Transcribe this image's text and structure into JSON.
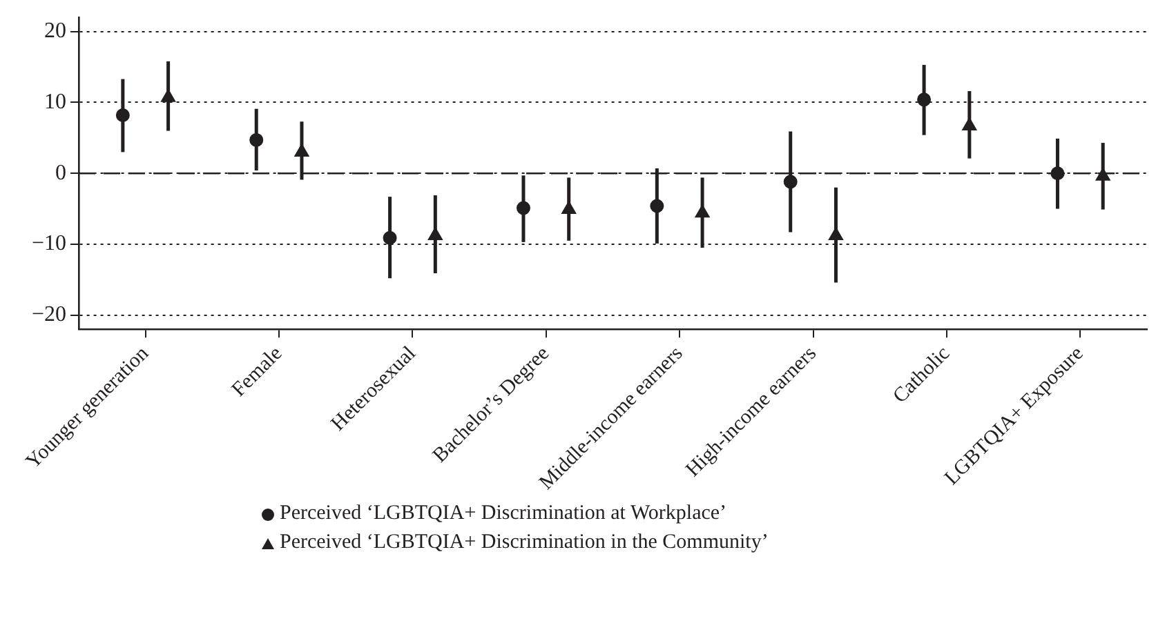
{
  "chart_data": {
    "type": "scatter",
    "categories": [
      "Younger generation",
      "Female",
      "Heterosexual",
      "Bachelor’s Degree",
      "Middle-income earners",
      "High-income earners",
      "Catholic",
      "LGBTQIA+ Exposure"
    ],
    "series": [
      {
        "name": "Perceived ‘LGBTQIA+ Discrimination at Workplace’",
        "color": "#231f20",
        "marker": "circle",
        "values": [
          8.2,
          4.7,
          -9.1,
          -4.9,
          -4.6,
          -1.2,
          10.4,
          0.0
        ],
        "errors": [
          [
            3.0,
            13.3
          ],
          [
            0.4,
            9.1
          ],
          [
            -14.8,
            -3.3
          ],
          [
            -9.7,
            -0.3
          ],
          [
            -9.9,
            0.7
          ],
          [
            -8.3,
            5.9
          ],
          [
            5.4,
            15.3
          ],
          [
            -5.0,
            4.9
          ]
        ]
      },
      {
        "name": "Perceived ‘LGBTQIA+ Discrimination in the Community’",
        "color": "#231f20",
        "marker": "triangle",
        "values": [
          10.7,
          3.0,
          -8.8,
          -5.1,
          -5.6,
          -8.8,
          6.7,
          -0.4
        ],
        "errors": [
          [
            6.0,
            15.8
          ],
          [
            -0.9,
            7.3
          ],
          [
            -14.1,
            -3.1
          ],
          [
            -9.5,
            -0.6
          ],
          [
            -10.5,
            -0.6
          ],
          [
            -15.4,
            -2.0
          ],
          [
            2.1,
            11.6
          ],
          [
            -5.1,
            4.3
          ]
        ]
      }
    ],
    "ylim": [
      -22,
      22
    ],
    "yticks": [
      {
        "value": -20,
        "label": "−20"
      },
      {
        "value": -10,
        "label": "−10"
      },
      0,
      10,
      20
    ],
    "grid": "y",
    "legend": "bottom",
    "ref_lines": [
      {
        "axis": "y",
        "value": 0,
        "line_style": "dashed"
      }
    ]
  }
}
